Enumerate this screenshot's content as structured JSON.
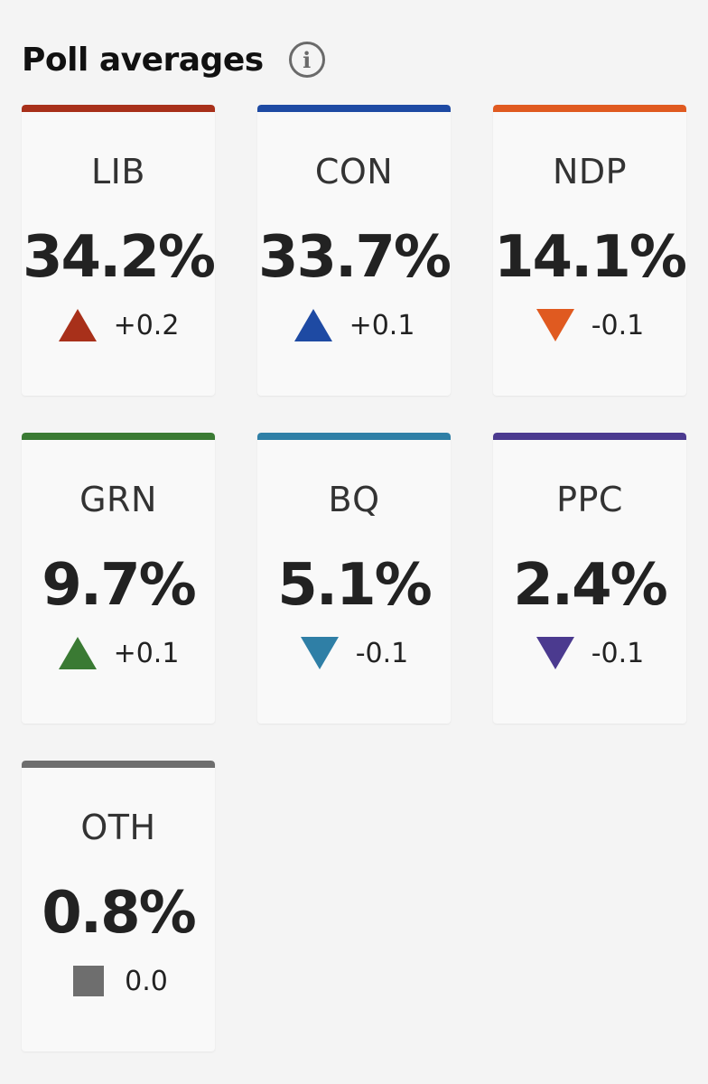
{
  "header": {
    "title": "Poll averages",
    "info_icon": "info-circle-icon"
  },
  "parties": [
    {
      "abbr": "LIB",
      "pct": "34.2%",
      "delta": "+0.2",
      "direction": "up",
      "color": "#a8301a"
    },
    {
      "abbr": "CON",
      "pct": "33.7%",
      "delta": "+0.1",
      "direction": "up",
      "color": "#1e4aa3"
    },
    {
      "abbr": "NDP",
      "pct": "14.1%",
      "delta": "-0.1",
      "direction": "down",
      "color": "#e05a20"
    },
    {
      "abbr": "GRN",
      "pct": "9.7%",
      "delta": "+0.1",
      "direction": "up",
      "color": "#3a7a33"
    },
    {
      "abbr": "BQ",
      "pct": "5.1%",
      "delta": "-0.1",
      "direction": "down",
      "color": "#2f7fa6"
    },
    {
      "abbr": "PPC",
      "pct": "2.4%",
      "delta": "-0.1",
      "direction": "down",
      "color": "#4b3a8f"
    },
    {
      "abbr": "OTH",
      "pct": "0.8%",
      "delta": "0.0",
      "direction": "flat",
      "color": "#6e6e6e"
    }
  ]
}
